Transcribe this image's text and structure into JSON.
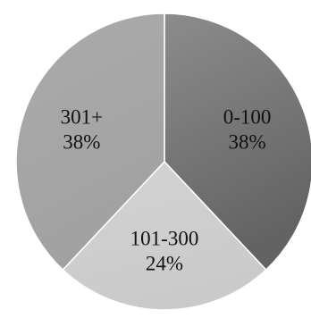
{
  "chart_data": {
    "type": "pie",
    "title": "",
    "start_angle_deg": 0,
    "direction": "clockwise",
    "slices": [
      {
        "label": "0-100",
        "percent_label": "38%",
        "value": 38,
        "color": "#8c8c8c",
        "color_dark": "#636363"
      },
      {
        "label": "101-300",
        "percent_label": "24%",
        "value": 24,
        "color": "#d3d3d3",
        "color_dark": "#cacaca"
      },
      {
        "label": "301+",
        "percent_label": "38%",
        "value": 38,
        "color": "#ababab",
        "color_dark": "#a1a1a1"
      }
    ]
  }
}
